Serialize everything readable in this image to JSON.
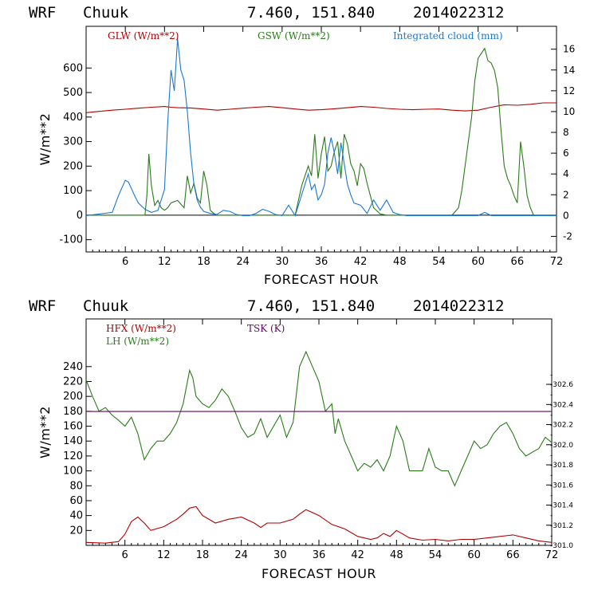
{
  "chart_data": [
    {
      "type": "line",
      "header": {
        "model": "WRF",
        "station": "Chuuk",
        "coords": "7.460, 151.840",
        "run": "2014022312"
      },
      "xlabel": "FORECAST HOUR",
      "ylabel": "W/m**2",
      "xlim": [
        0,
        72
      ],
      "xticks": [
        6,
        12,
        18,
        24,
        30,
        36,
        42,
        48,
        54,
        60,
        66,
        72
      ],
      "ylim": [
        -150,
        770
      ],
      "yticks": [
        -100,
        0,
        100,
        200,
        300,
        400,
        500,
        600
      ],
      "y2lim": [
        -3.5,
        18.2
      ],
      "y2ticks": [
        -2,
        0,
        2,
        4,
        6,
        8,
        10,
        12,
        14,
        16
      ],
      "colors": {
        "GLW": "#b00000",
        "GSW": "#2a7a1a",
        "cloud": "#1a78d0"
      },
      "series": [
        {
          "name": "GLW (W/m**2)",
          "key": "GLW",
          "axis": "left",
          "x": [
            0,
            2,
            4,
            6,
            8,
            10,
            12,
            13,
            14,
            16,
            18,
            20,
            22,
            24,
            26,
            28,
            30,
            32,
            34,
            36,
            38,
            40,
            42,
            44,
            46,
            48,
            50,
            52,
            54,
            56,
            58,
            60,
            62,
            64,
            66,
            68,
            70,
            72
          ],
          "values": [
            418,
            423,
            428,
            432,
            436,
            440,
            443,
            440,
            438,
            437,
            433,
            428,
            432,
            436,
            440,
            443,
            438,
            433,
            428,
            430,
            434,
            438,
            443,
            440,
            435,
            432,
            430,
            432,
            433,
            428,
            425,
            428,
            440,
            450,
            448,
            452,
            458,
            458
          ]
        },
        {
          "name": "GSW (W/m**2)",
          "key": "GSW",
          "axis": "left",
          "x": [
            0,
            9,
            9.3,
            9.6,
            10,
            10.5,
            11,
            11.5,
            12,
            12.5,
            13,
            14,
            15,
            15.5,
            16,
            16.5,
            17,
            17.5,
            18,
            18.5,
            19,
            19.5,
            20,
            32,
            33,
            34,
            34.5,
            35,
            35.5,
            36,
            36.5,
            37,
            37.5,
            38,
            38.5,
            39,
            39.5,
            40,
            40.5,
            41,
            41.5,
            42,
            42.5,
            43,
            43.5,
            44,
            45,
            46,
            56,
            57,
            57.5,
            58,
            58.5,
            59,
            59.5,
            60,
            60.5,
            61,
            61.5,
            62,
            62.5,
            63,
            63.5,
            64,
            64.5,
            65,
            65.5,
            66,
            66.5,
            67,
            67.5,
            68,
            68.5,
            72
          ],
          "values": [
            0,
            0,
            80,
            250,
            120,
            40,
            60,
            30,
            20,
            30,
            50,
            60,
            30,
            160,
            90,
            130,
            70,
            50,
            180,
            120,
            20,
            8,
            0,
            0,
            120,
            200,
            160,
            330,
            150,
            250,
            320,
            180,
            200,
            260,
            300,
            150,
            330,
            290,
            210,
            180,
            120,
            210,
            190,
            130,
            80,
            30,
            5,
            0,
            0,
            30,
            100,
            200,
            300,
            400,
            550,
            640,
            660,
            680,
            630,
            620,
            590,
            520,
            350,
            200,
            150,
            120,
            80,
            50,
            300,
            200,
            80,
            30,
            0,
            0
          ]
        },
        {
          "name": "Integrated cloud (mm)",
          "key": "cloud",
          "axis": "right",
          "x": [
            0,
            4,
            5,
            6,
            6.5,
            7,
            7.5,
            8,
            9,
            10,
            11,
            12,
            12.5,
            13,
            13.5,
            14,
            14.5,
            15,
            15.5,
            16,
            16.5,
            17,
            17.5,
            18,
            19,
            20,
            21,
            22,
            23,
            24,
            25,
            26,
            27,
            28,
            29,
            30,
            31,
            32,
            33,
            34,
            34.5,
            35,
            35.5,
            36,
            36.5,
            37,
            37.5,
            38,
            38.5,
            39,
            39.5,
            40,
            40.5,
            41,
            42,
            43,
            44,
            45,
            46,
            47,
            48,
            49,
            50,
            60,
            61,
            62,
            63,
            64,
            65,
            66,
            72
          ],
          "values": [
            0,
            0.3,
            2,
            3.4,
            3.2,
            2.5,
            1.8,
            1.2,
            0.6,
            0.3,
            0.5,
            2.5,
            9,
            14,
            12,
            17,
            14,
            13,
            10,
            6,
            3,
            1.5,
            0.8,
            0.4,
            0.2,
            0.1,
            0.5,
            0.4,
            0.1,
            0,
            0,
            0.2,
            0.6,
            0.4,
            0.1,
            0,
            1,
            0,
            2,
            4,
            2.5,
            3,
            1.5,
            2,
            3,
            6,
            7.5,
            6,
            4,
            7,
            5,
            3,
            2,
            1.2,
            1,
            0.2,
            1.5,
            0.5,
            1.5,
            0.3,
            0.1,
            0,
            0,
            0,
            0.3,
            0,
            0,
            0,
            0,
            0,
            0
          ]
        }
      ],
      "legend": [
        {
          "key": "GLW",
          "label": "GLW (W/m**2)"
        },
        {
          "key": "GSW",
          "label": "GSW (W/m**2)"
        },
        {
          "key": "cloud",
          "label": "Integrated cloud (mm)"
        }
      ]
    },
    {
      "type": "line",
      "header": {
        "model": "WRF",
        "station": "Chuuk",
        "coords": "7.460, 151.840",
        "run": "2014022312"
      },
      "xlabel": "FORECAST HOUR",
      "ylabel": "W/m**2",
      "xlim": [
        0,
        72
      ],
      "xticks": [
        6,
        12,
        18,
        24,
        30,
        36,
        42,
        48,
        54,
        60,
        66,
        72
      ],
      "ylim": [
        0,
        304
      ],
      "yticks": [
        20,
        40,
        60,
        80,
        100,
        120,
        140,
        160,
        180,
        200,
        220,
        240
      ],
      "y2lim": [
        301.0,
        303.25
      ],
      "y2ticks": [
        301.0,
        301.2,
        301.4,
        301.6,
        301.8,
        302.0,
        302.2,
        302.4,
        302.6
      ],
      "colors": {
        "HFX": "#b00000",
        "LH": "#2a7a1a",
        "TSK": "#5a0a5a"
      },
      "series": [
        {
          "name": "HFX (W/m**2)",
          "key": "HFX",
          "axis": "left",
          "x": [
            0,
            3,
            5,
            6,
            7,
            8,
            9,
            10,
            12,
            14,
            15,
            16,
            17,
            18,
            20,
            22,
            24,
            26,
            27,
            28,
            30,
            32,
            33,
            34,
            35,
            36,
            38,
            40,
            42,
            44,
            45,
            46,
            47,
            48,
            50,
            52,
            54,
            56,
            58,
            60,
            62,
            64,
            66,
            68,
            70,
            72
          ],
          "values": [
            4,
            3,
            5,
            15,
            32,
            38,
            30,
            20,
            25,
            35,
            42,
            50,
            52,
            40,
            30,
            35,
            38,
            30,
            24,
            30,
            30,
            35,
            42,
            48,
            44,
            40,
            28,
            22,
            12,
            8,
            10,
            16,
            12,
            20,
            10,
            7,
            8,
            6,
            8,
            8,
            10,
            12,
            14,
            10,
            6,
            4
          ]
        },
        {
          "name": "LH (W/m**2)",
          "key": "LH",
          "axis": "left",
          "x": [
            0,
            1,
            2,
            3,
            4,
            5,
            6,
            7,
            8,
            9,
            10,
            11,
            12,
            13,
            14,
            15,
            16,
            16.5,
            17,
            18,
            19,
            20,
            21,
            22,
            23,
            24,
            25,
            26,
            27,
            28,
            29,
            30,
            31,
            32,
            33,
            34,
            34.5,
            35,
            36,
            37,
            38,
            38.5,
            39,
            40,
            41,
            42,
            43,
            44,
            45,
            46,
            47,
            48,
            49,
            50,
            51,
            52,
            53,
            54,
            55,
            56,
            57,
            58,
            59,
            60,
            61,
            62,
            63,
            64,
            65,
            66,
            67,
            68,
            69,
            70,
            71,
            72
          ],
          "values": [
            222,
            200,
            180,
            185,
            175,
            168,
            160,
            172,
            150,
            115,
            130,
            140,
            140,
            150,
            165,
            190,
            235,
            225,
            200,
            190,
            185,
            195,
            210,
            200,
            180,
            158,
            145,
            150,
            170,
            145,
            160,
            175,
            145,
            165,
            240,
            260,
            250,
            240,
            220,
            180,
            190,
            150,
            170,
            140,
            120,
            100,
            110,
            105,
            115,
            100,
            120,
            160,
            140,
            100,
            100,
            100,
            130,
            105,
            100,
            100,
            80,
            100,
            120,
            140,
            130,
            135,
            150,
            160,
            165,
            150,
            130,
            120,
            125,
            130,
            145,
            138
          ]
        },
        {
          "name": "TSK (K)",
          "key": "TSK",
          "axis": "right",
          "x": [
            0,
            72
          ],
          "values": [
            302.33,
            302.33
          ]
        }
      ],
      "legend": [
        {
          "key": "HFX",
          "label": "HFX (W/m**2)"
        },
        {
          "key": "LH",
          "label": "LH  (W/m**2)"
        },
        {
          "key": "TSK",
          "label": "TSK (K)"
        }
      ]
    }
  ]
}
